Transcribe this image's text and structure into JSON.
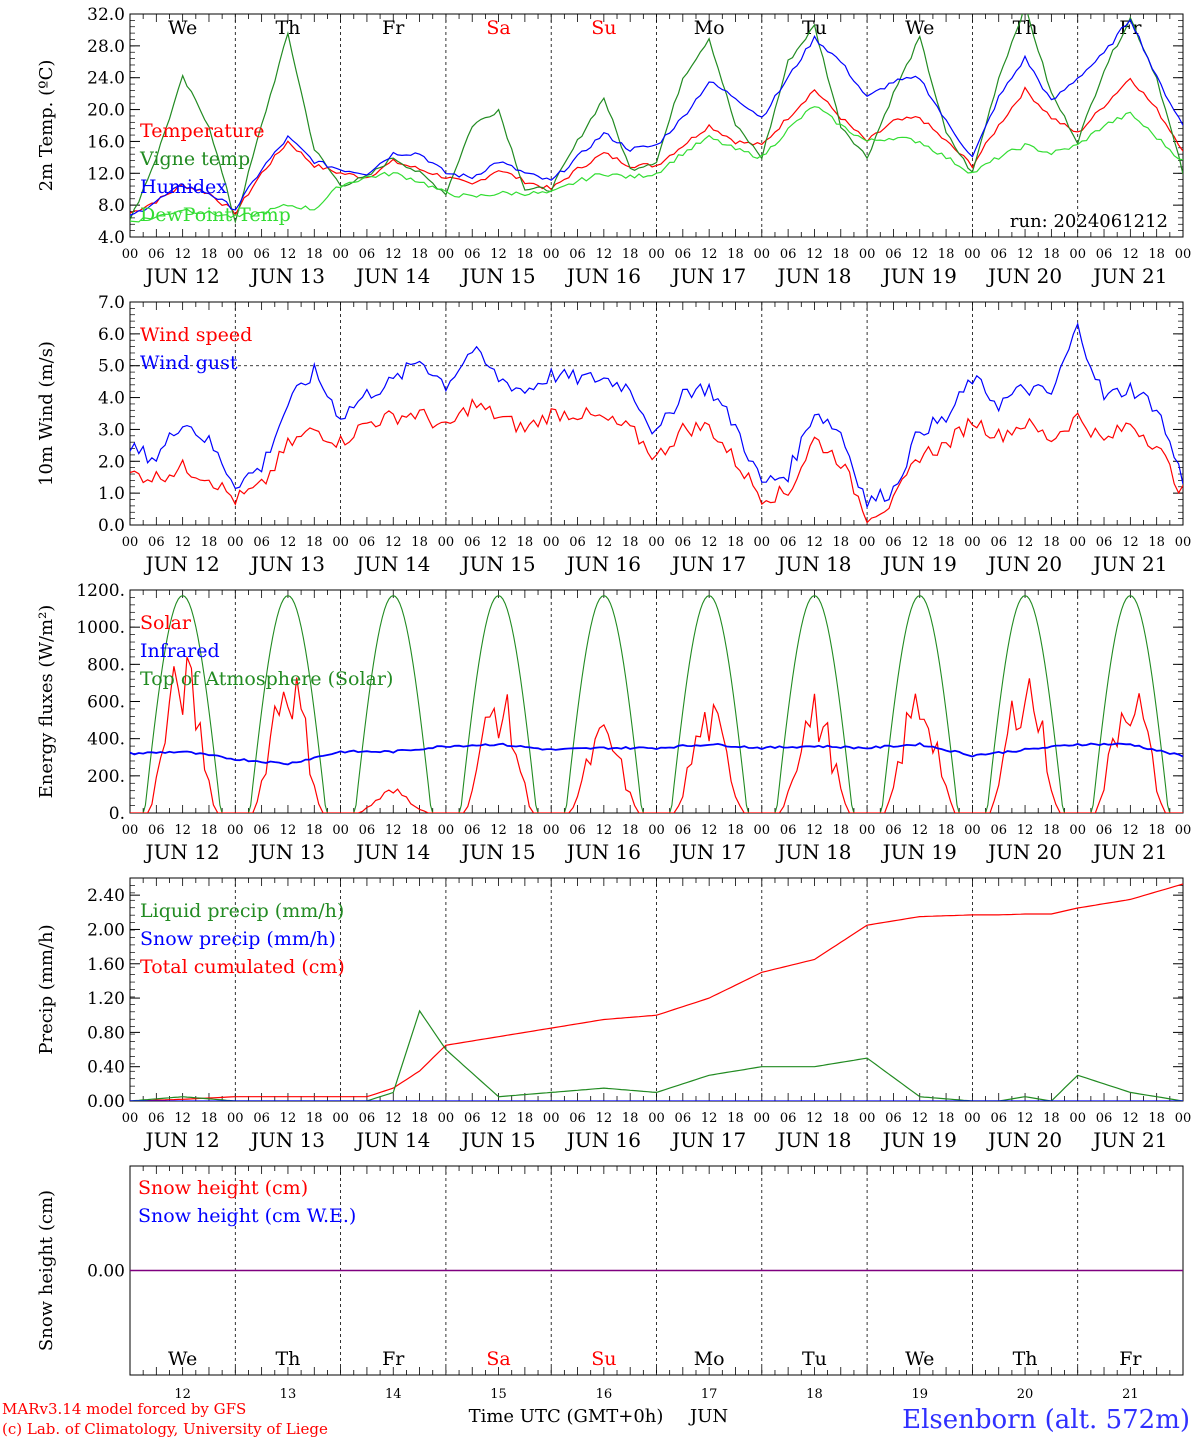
{
  "run_label": "run: 2024061212",
  "footer": {
    "model_line": "MARv3.14 model forced by GFS",
    "credit_line": "(c) Lab. of Climatology, University of Liege",
    "axis_title": "Time UTC (GMT+0h)",
    "month": "JUN",
    "station": "Elsenborn (alt. 572m)"
  },
  "colors": {
    "red": "#ff0000",
    "green": "#228b22",
    "blue": "#0000ff",
    "lightgreen": "#33dd33",
    "purple": "#7f007f"
  },
  "time_axis": {
    "hour_ticks": [
      "00",
      "06",
      "12",
      "18"
    ],
    "day_labels": [
      "JUN 12",
      "JUN 13",
      "JUN 14",
      "JUN 15",
      "JUN 16",
      "JUN 17",
      "JUN 18",
      "JUN 19",
      "JUN 20",
      "JUN 21"
    ],
    "day_numbers": [
      "12",
      "13",
      "14",
      "15",
      "16",
      "17",
      "18",
      "19",
      "20",
      "21"
    ],
    "weekdays": [
      "We",
      "Th",
      "Fr",
      "Sa",
      "Su",
      "Mo",
      "Tu",
      "We",
      "Th",
      "Fr"
    ],
    "weekend_color": [
      "#000000",
      "#000000",
      "#000000",
      "#ff0000",
      "#ff0000",
      "#000000",
      "#000000",
      "#000000",
      "#000000",
      "#000000"
    ]
  },
  "chart_data": [
    {
      "type": "line",
      "ylabel": "2m Temp. (ºC)",
      "ylim": [
        4.0,
        32.0
      ],
      "yticks": [
        "4.0",
        "8.0",
        "12.0",
        "16.0",
        "20.0",
        "24.0",
        "28.0",
        "32.0"
      ],
      "legend": [
        "Temperature",
        "Vigne temp",
        "Humidex",
        "DewPoint Temp"
      ],
      "x_hours": [
        0,
        6,
        12,
        18,
        24,
        30,
        36,
        42,
        48,
        54,
        60,
        66,
        72,
        78,
        84,
        90,
        96,
        102,
        108,
        114,
        120,
        126,
        132,
        138,
        144,
        150,
        156,
        162,
        168,
        174,
        180,
        186,
        192,
        198,
        204,
        210,
        216,
        222,
        228,
        234,
        240
      ],
      "series": [
        {
          "name": "Temperature",
          "color": "#ff0000",
          "values": [
            7.0,
            8.5,
            10.5,
            9.5,
            7.0,
            12.0,
            16.0,
            13.0,
            12.0,
            11.5,
            13.5,
            12.5,
            11.5,
            10.5,
            12.5,
            11.0,
            10.0,
            12.5,
            14.5,
            13.0,
            13.0,
            15.5,
            18.0,
            16.0,
            15.5,
            19.0,
            22.5,
            19.0,
            16.0,
            18.5,
            19.0,
            16.0,
            13.0,
            18.0,
            22.5,
            19.0,
            17.0,
            20.5,
            24.0,
            20.0,
            15.0
          ]
        },
        {
          "name": "Vigne temp",
          "color": "#228b22",
          "values": [
            6.0,
            14.0,
            24.0,
            18.0,
            6.0,
            18.0,
            29.5,
            15.0,
            10.5,
            11.5,
            14.0,
            12.0,
            9.5,
            18.0,
            20.0,
            10.0,
            10.0,
            16.0,
            21.5,
            12.5,
            13.5,
            24.0,
            29.0,
            18.0,
            14.0,
            26.0,
            30.5,
            18.0,
            14.0,
            22.0,
            29.0,
            17.0,
            12.0,
            24.0,
            33.0,
            22.0,
            16.0,
            25.0,
            31.5,
            24.0,
            12.0
          ]
        },
        {
          "name": "Humidex",
          "color": "#0000ff",
          "values": [
            6.5,
            8.5,
            10.5,
            9.5,
            7.5,
            12.5,
            16.5,
            13.5,
            12.5,
            12.0,
            14.5,
            14.5,
            12.0,
            11.5,
            13.5,
            12.0,
            11.0,
            14.0,
            17.0,
            15.0,
            15.5,
            19.0,
            23.5,
            21.5,
            19.0,
            24.0,
            29.0,
            26.0,
            21.5,
            23.5,
            24.0,
            18.5,
            14.0,
            21.5,
            26.5,
            21.0,
            24.0,
            27.0,
            31.5,
            24.0,
            18.0
          ]
        },
        {
          "name": "DewPoint Temp",
          "color": "#33dd33",
          "values": [
            6.0,
            6.5,
            7.5,
            7.0,
            6.5,
            7.0,
            8.0,
            7.5,
            10.5,
            11.5,
            12.0,
            11.0,
            9.5,
            9.0,
            9.5,
            9.5,
            9.5,
            11.0,
            12.0,
            11.5,
            12.0,
            14.5,
            16.5,
            15.0,
            14.0,
            17.5,
            20.5,
            18.0,
            16.0,
            16.5,
            16.0,
            14.0,
            12.0,
            14.0,
            15.5,
            14.5,
            15.5,
            18.0,
            19.5,
            16.5,
            13.5
          ]
        }
      ]
    },
    {
      "type": "line",
      "ylabel": "10m Wind (m/s)",
      "ylim": [
        0.0,
        7.0
      ],
      "yticks": [
        "0.0",
        "1.0",
        "2.0",
        "3.0",
        "4.0",
        "5.0",
        "6.0",
        "7.0"
      ],
      "reference_line": 5.0,
      "legend": [
        "Wind speed",
        "Wind gust"
      ],
      "x_hours": [
        0,
        6,
        12,
        18,
        24,
        30,
        36,
        42,
        48,
        54,
        60,
        66,
        72,
        78,
        84,
        90,
        96,
        102,
        108,
        114,
        120,
        126,
        132,
        138,
        144,
        150,
        156,
        162,
        168,
        174,
        180,
        186,
        192,
        198,
        204,
        210,
        216,
        222,
        228,
        234,
        240
      ],
      "series": [
        {
          "name": "Wind speed",
          "color": "#ff0000",
          "values": [
            1.6,
            1.5,
            1.8,
            1.5,
            0.8,
            1.2,
            2.5,
            3.0,
            2.6,
            3.2,
            3.4,
            3.5,
            3.0,
            3.8,
            3.4,
            3.0,
            3.5,
            3.5,
            3.3,
            3.0,
            2.1,
            3.0,
            3.1,
            2.0,
            0.9,
            1.0,
            2.7,
            2.0,
            0.3,
            0.7,
            2.2,
            2.5,
            3.3,
            2.8,
            3.2,
            2.7,
            3.4,
            2.6,
            3.2,
            2.5,
            1.0
          ]
        },
        {
          "name": "Wind gust",
          "color": "#0000ff",
          "values": [
            2.4,
            2.1,
            3.3,
            2.6,
            1.3,
            1.8,
            3.8,
            4.8,
            3.4,
            4.1,
            4.5,
            5.2,
            4.4,
            5.5,
            4.6,
            4.2,
            4.7,
            4.6,
            4.6,
            4.3,
            2.8,
            4.2,
            4.3,
            3.1,
            1.3,
            1.6,
            3.6,
            2.9,
            0.7,
            1.1,
            3.0,
            3.3,
            4.6,
            3.8,
            4.3,
            4.1,
            6.2,
            4.0,
            4.3,
            3.7,
            1.4
          ]
        }
      ]
    },
    {
      "type": "line",
      "ylabel": "Energy fluxes (W/m²)",
      "ylim": [
        0,
        1200
      ],
      "yticks": [
        "0.",
        "200.",
        "400.",
        "600.",
        "800.",
        "1000.",
        "1200."
      ],
      "legend": [
        "Solar",
        "Infrared",
        "Top of Atmosphere (Solar)"
      ],
      "toa_peak": 1170,
      "infrared": {
        "name": "Infrared",
        "color": "#0000ff",
        "x_hours": [
          0,
          12,
          24,
          36,
          48,
          60,
          72,
          84,
          96,
          108,
          120,
          132,
          144,
          156,
          168,
          180,
          192,
          204,
          216,
          228,
          240
        ],
        "values": [
          320,
          330,
          290,
          265,
          330,
          330,
          360,
          370,
          340,
          350,
          350,
          370,
          350,
          360,
          350,
          370,
          310,
          340,
          370,
          370,
          305
        ]
      },
      "solar_daily_peaks": [
        900,
        890,
        140,
        720,
        500,
        620,
        660,
        740,
        860,
        800
      ]
    },
    {
      "type": "line",
      "ylabel": "Precip (mm/h)",
      "ylim": [
        0.0,
        2.6
      ],
      "yticks": [
        "0.00",
        "0.40",
        "0.80",
        "1.20",
        "1.60",
        "2.00",
        "2.40"
      ],
      "legend": [
        "Liquid precip (mm/h)",
        "Snow precip (mm/h)",
        "Total cumulated (cm)"
      ],
      "x_hours": [
        0,
        12,
        24,
        36,
        48,
        54,
        60,
        66,
        72,
        84,
        96,
        108,
        120,
        132,
        144,
        156,
        168,
        180,
        192,
        198,
        204,
        210,
        216,
        228,
        240
      ],
      "series": [
        {
          "name": "Total cumulated (cm)",
          "color": "#ff0000",
          "values": [
            0.0,
            0.02,
            0.05,
            0.05,
            0.05,
            0.05,
            0.15,
            0.35,
            0.65,
            0.75,
            0.85,
            0.95,
            1.0,
            1.2,
            1.5,
            1.65,
            2.05,
            2.15,
            2.17,
            2.17,
            2.18,
            2.18,
            2.25,
            2.35,
            2.53
          ]
        },
        {
          "name": "Liquid precip (mm/h)",
          "color": "#228b22",
          "values": [
            0.0,
            0.05,
            0.0,
            0.0,
            0.0,
            0.0,
            0.1,
            1.05,
            0.6,
            0.05,
            0.1,
            0.15,
            0.1,
            0.3,
            0.4,
            0.4,
            0.5,
            0.05,
            0.0,
            0.0,
            0.05,
            0.0,
            0.3,
            0.1,
            0.0
          ]
        },
        {
          "name": "Snow precip (mm/h)",
          "color": "#0000ff",
          "values": [
            0,
            0,
            0,
            0,
            0,
            0,
            0,
            0,
            0,
            0,
            0,
            0,
            0,
            0,
            0,
            0,
            0,
            0,
            0,
            0,
            0,
            0,
            0,
            0,
            0
          ]
        }
      ]
    },
    {
      "type": "line",
      "ylabel": "Snow height (cm)",
      "yticks": [
        "0.00"
      ],
      "legend": [
        "Snow height (cm)",
        "Snow height (cm W.E.)"
      ],
      "series": [
        {
          "name": "Snow height (cm)",
          "color": "#ff0000",
          "value": 0.0
        },
        {
          "name": "Snow height (cm W.E.)",
          "color": "#0000ff",
          "value": 0.0
        }
      ]
    }
  ]
}
